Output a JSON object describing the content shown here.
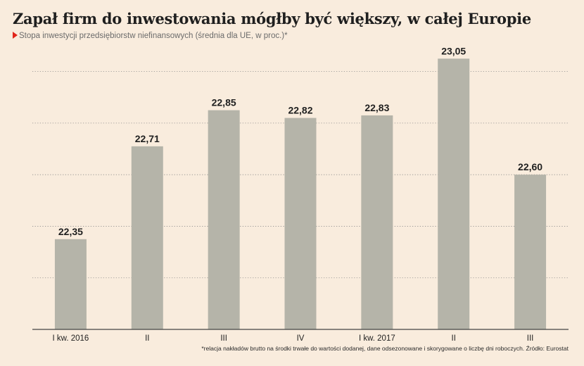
{
  "header": {
    "title": "Zapał firm do inwestowania mógłby być większy, w całej Europie",
    "subtitle": "Stopa inwestycji przedsiębiorstw niefinansowych (średnia dla UE, w proc.)*"
  },
  "footnote": "*relacja nakładów brutto na środki trwałe do wartości dodanej, dane odsezonowane i skorygowane o liczbę dni roboczych. Źródło: Eurostat",
  "colors": {
    "background": "#f9ecdd",
    "bar": "#b5b4a9",
    "accent": "#e1251b",
    "grid": "#8a8a8a",
    "axis": "#444444"
  },
  "chart_data": {
    "type": "bar",
    "categories": [
      "I kw. 2016",
      "II",
      "III",
      "IV",
      "I kw. 2017",
      "II",
      "III"
    ],
    "values": [
      22.35,
      22.71,
      22.85,
      22.82,
      22.83,
      23.05,
      22.6
    ],
    "value_labels": [
      "22,35",
      "22,71",
      "22,85",
      "22,82",
      "22,83",
      "23,05",
      "22,60"
    ],
    "ylim": [
      22.0,
      23.1
    ],
    "grid": true,
    "grid_style": "dotted-horizontal",
    "legend": "none"
  }
}
